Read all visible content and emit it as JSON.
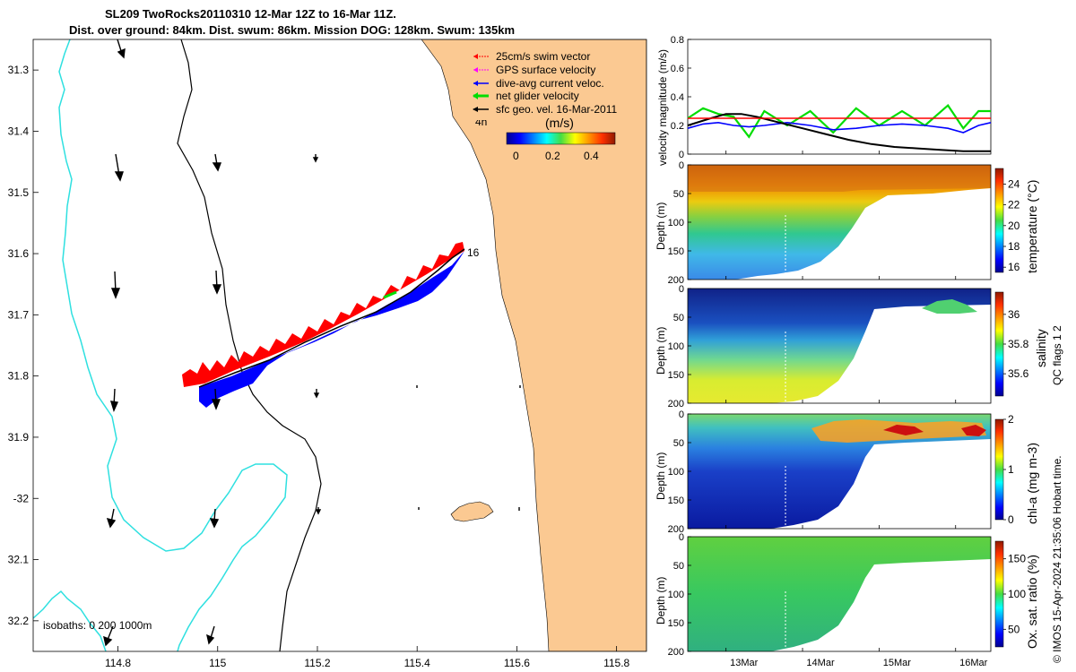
{
  "header": {
    "line1": "SL209 TwoRocks20110310 12-Mar 12Z to 16-Mar 11Z.",
    "line2": "Dist. over ground: 84km. Dist. swum: 86km. Mission DOG: 128km. Swum: 135km"
  },
  "colors": {
    "land": "#fbc992",
    "isobath_200": "#000000",
    "isobath_1000": "#2fe0e0",
    "swim": "#ff0000",
    "gps": "#ff00ff",
    "dive_avg": "#0000ff",
    "net": "#00dd00",
    "sfc_geo": "#000000"
  },
  "legend": {
    "items": [
      {
        "label": "25cm/s swim vector",
        "color": "#ff0000"
      },
      {
        "label": "GPS surface velocity",
        "color": "#ff00ff"
      },
      {
        "label": "dive-avg current veloc.",
        "color": "#0000ff"
      },
      {
        "label": "net glider velocity",
        "color": "#00dd00"
      },
      {
        "label": "sfc geo. vel. 16-Mar-2011",
        "color": "#000000"
      }
    ],
    "age_label": "4h",
    "colorbar_title": "(m/s)",
    "colorbar_ticks": [
      "0",
      "0.2",
      "0.4"
    ]
  },
  "map": {
    "isobaths_label": "isobaths:  0   200   1000m",
    "track_label": "16"
  },
  "chart_data": [
    {
      "type": "map",
      "title": "SL209 TwoRocks20110310 12-Mar 12Z to 16-Mar 11Z.",
      "xlim": [
        114.63,
        115.86
      ],
      "ylim": [
        -32.25,
        -31.25
      ],
      "x_ticks": [
        114.8,
        115,
        115.2,
        115.4,
        115.6,
        115.8
      ],
      "x_tick_labels": [
        "114.8",
        "115",
        "115.2",
        "115.4",
        "115.6",
        "115.8"
      ],
      "y_ticks": [
        -31.3,
        -31.4,
        -31.5,
        -31.6,
        -31.7,
        -31.8,
        -31.9,
        -32,
        -32.1,
        -32.2
      ],
      "y_tick_labels": [
        "31.3",
        "31.4",
        "31.5",
        "31.6",
        "31.7",
        "31.8",
        "31.9",
        "-32",
        "32.1",
        "32.2"
      ],
      "glider_track": {
        "lon": [
          114.96,
          115.02,
          115.08,
          115.14,
          115.2,
          115.26,
          115.32,
          115.38,
          115.44,
          115.48
        ],
        "lat": [
          -31.79,
          -31.77,
          -31.74,
          -31.72,
          -31.695,
          -31.67,
          -31.645,
          -31.62,
          -31.59,
          -31.565
        ]
      },
      "geo_vectors": [
        {
          "lon": 114.79,
          "lat": -31.26,
          "u": 0.01,
          "v": -0.03
        },
        {
          "lon": 114.8,
          "lat": -31.4,
          "u": 0.005,
          "v": -0.05
        },
        {
          "lon": 114.78,
          "lat": -31.6,
          "u": 0.002,
          "v": -0.05
        },
        {
          "lon": 114.78,
          "lat": -31.81,
          "u": -0.002,
          "v": -0.04
        },
        {
          "lon": 114.77,
          "lat": -32.01,
          "u": -0.005,
          "v": -0.03
        },
        {
          "lon": 114.76,
          "lat": -32.2,
          "u": -0.01,
          "v": -0.03
        },
        {
          "lon": 115.01,
          "lat": -31.4,
          "u": 0.003,
          "v": -0.025
        },
        {
          "lon": 115.01,
          "lat": -31.6,
          "u": 0.003,
          "v": -0.04
        },
        {
          "lon": 115.0,
          "lat": -31.8,
          "u": 0.0,
          "v": -0.03
        },
        {
          "lon": 115.0,
          "lat": -32.0,
          "u": -0.005,
          "v": -0.03
        },
        {
          "lon": 114.99,
          "lat": -32.2,
          "u": -0.01,
          "v": -0.025
        }
      ]
    },
    {
      "type": "line",
      "ylabel": "velocity magnitude (m/s)",
      "x_range": [
        "12-Mar 12Z",
        "16-Mar 11Z"
      ],
      "x_days": [
        12.5,
        16.46
      ],
      "ylim": [
        0,
        0.8
      ],
      "y_ticks": [
        "0",
        "0.2",
        "0.4",
        "0.6",
        "0.8"
      ],
      "series": [
        {
          "name": "net glider velocity",
          "color": "#00dd00",
          "x": [
            12.5,
            12.7,
            12.9,
            13.1,
            13.3,
            13.5,
            13.8,
            14.1,
            14.4,
            14.7,
            15.0,
            15.3,
            15.6,
            15.9,
            16.1,
            16.3,
            16.46
          ],
          "values": [
            0.25,
            0.32,
            0.28,
            0.26,
            0.12,
            0.3,
            0.2,
            0.3,
            0.15,
            0.32,
            0.2,
            0.3,
            0.2,
            0.34,
            0.18,
            0.3,
            0.3
          ]
        },
        {
          "name": "dive-avg current veloc.",
          "color": "#0000ff",
          "x": [
            12.5,
            12.7,
            12.9,
            13.1,
            13.3,
            13.5,
            13.8,
            14.1,
            14.4,
            14.7,
            15.0,
            15.3,
            15.6,
            15.9,
            16.1,
            16.3,
            16.46
          ],
          "values": [
            0.18,
            0.21,
            0.22,
            0.2,
            0.19,
            0.2,
            0.22,
            0.2,
            0.17,
            0.18,
            0.2,
            0.21,
            0.2,
            0.18,
            0.15,
            0.2,
            0.22
          ]
        },
        {
          "name": "sfc geo. vel.",
          "color": "#000000",
          "x": [
            12.5,
            12.8,
            13.0,
            13.2,
            13.4,
            13.7,
            14.0,
            14.3,
            14.6,
            14.9,
            15.2,
            15.5,
            15.8,
            16.1,
            16.46
          ],
          "values": [
            0.2,
            0.25,
            0.28,
            0.28,
            0.26,
            0.22,
            0.18,
            0.14,
            0.1,
            0.07,
            0.05,
            0.04,
            0.03,
            0.02,
            0.02
          ]
        },
        {
          "name": "25cm/s swim vector",
          "color": "#ff0000",
          "x": [
            12.5,
            16.46
          ],
          "values": [
            0.25,
            0.25
          ]
        }
      ]
    },
    {
      "type": "heatmap",
      "ylabel": "Depth (m)",
      "cblabel": "temperature (°C)",
      "y_ticks": [
        "0",
        "50",
        "100",
        "150",
        "200"
      ],
      "clim": [
        15.5,
        25.5
      ],
      "cb_ticks": [
        "24",
        "22",
        "20",
        "18",
        "16"
      ]
    },
    {
      "type": "heatmap",
      "ylabel": "Depth (m)",
      "cblabel": "salinity",
      "y_ticks": [
        "0",
        "50",
        "100",
        "150",
        "200"
      ],
      "clim": [
        35.45,
        36.15
      ],
      "cb_ticks": [
        "36",
        "35.8",
        "35.6"
      ]
    },
    {
      "type": "heatmap",
      "ylabel": "Depth (m)",
      "cblabel": "chl-a (mg m-3)",
      "y_ticks": [
        "0",
        "50",
        "100",
        "150",
        "200"
      ],
      "clim": [
        0,
        2
      ],
      "cb_ticks": [
        "2",
        "1",
        "0"
      ]
    },
    {
      "type": "heatmap",
      "ylabel": "Depth (m)",
      "cblabel": "Ox. sat. ratio (%)",
      "y_ticks": [
        "0",
        "50",
        "100",
        "150",
        "200"
      ],
      "clim": [
        25,
        175
      ],
      "cb_ticks": [
        "150",
        "100",
        "50"
      ],
      "x_tick_labels": [
        "13Mar",
        "14Mar",
        "15Mar",
        "16Mar"
      ]
    }
  ],
  "sidebar": {
    "qc_text": "QC flags 1  2",
    "footer": "© IMOS 15-Apr-2024 21:35:06 Hobart time."
  }
}
